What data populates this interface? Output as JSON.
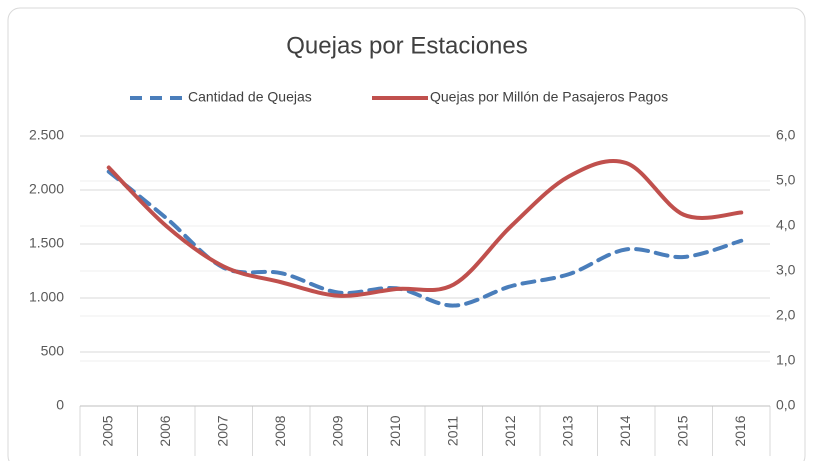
{
  "chart_data": {
    "type": "line",
    "title": "Quejas por Estaciones",
    "categories": [
      "2005",
      "2006",
      "2007",
      "2008",
      "2009",
      "2010",
      "2011",
      "2012",
      "2013",
      "2014",
      "2015",
      "2016"
    ],
    "series": [
      {
        "name": "Cantidad de Quejas",
        "color": "#4a7ebb",
        "dashed": true,
        "values": [
          2170,
          1740,
          1280,
          1230,
          1050,
          1090,
          930,
          1110,
          1220,
          1450,
          1380,
          1530
        ]
      },
      {
        "name": "Quejas por Millón de Pasajeros Pagos",
        "color": "#c0504d",
        "axis": "y2",
        "values": [
          5.3,
          4.0,
          3.1,
          2.75,
          2.45,
          2.6,
          2.7,
          4.0,
          5.1,
          5.4,
          4.25,
          4.3
        ]
      }
    ],
    "ylim": [
      0,
      2500
    ],
    "yticks": [
      0,
      500,
      {
        "value": 1000,
        "label": "1.000"
      },
      {
        "value": 1500,
        "label": "1.500"
      },
      {
        "value": 2000,
        "label": "2.000"
      },
      {
        "value": 2500,
        "label": "2.500"
      }
    ],
    "y2lim": [
      0,
      6
    ],
    "y2ticks": [
      {
        "value": 0,
        "label": "0,0"
      },
      {
        "value": 1,
        "label": "1,0"
      },
      {
        "value": 2,
        "label": "2,0"
      },
      {
        "value": 3,
        "label": "3,0"
      },
      {
        "value": 4,
        "label": "4,0"
      },
      {
        "value": 5,
        "label": "5,0"
      },
      {
        "value": 6,
        "label": "6,0"
      }
    ],
    "grid": true,
    "legend": "top",
    "smooth": true
  }
}
